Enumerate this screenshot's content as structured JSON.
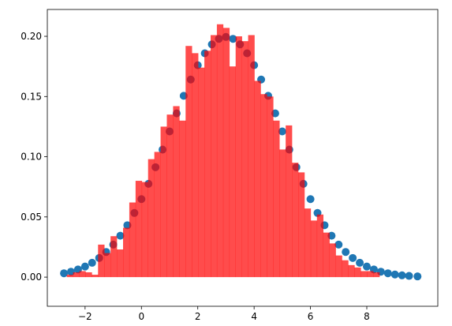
{
  "chart_data": {
    "type": "layered",
    "xlim": [
      -3.34,
      10.52
    ],
    "ylim": [
      -0.0242,
      0.2223
    ],
    "xticks": [
      {
        "value": -2,
        "label": "−2"
      },
      0,
      2,
      4,
      6,
      8
    ],
    "yticks": [
      {
        "value": 0,
        "label": "0.00"
      },
      {
        "value": 0.05,
        "label": "0.05"
      },
      {
        "value": 0.1,
        "label": "0.10"
      },
      {
        "value": 0.15,
        "label": "0.15"
      },
      {
        "value": 0.2,
        "label": "0.20"
      }
    ],
    "layers": [
      {
        "type": "scatter",
        "color": "#1f77b4",
        "x": [
          -2.75,
          -2.5,
          -2.25,
          -2.0,
          -1.75,
          -1.5,
          -1.25,
          -1.0,
          -0.75,
          -0.5,
          -0.25,
          0,
          0.25,
          0.5,
          0.75,
          1.0,
          1.25,
          1.5,
          1.75,
          2.0,
          2.25,
          2.5,
          2.75,
          3.0,
          3.25,
          3.5,
          3.75,
          4.0,
          4.25,
          4.5,
          4.75,
          5.0,
          5.25,
          5.5,
          5.75,
          6.0,
          6.25,
          6.5,
          6.75,
          7.0,
          7.25,
          7.5,
          7.75,
          8.0,
          8.25,
          8.5,
          8.75,
          9.0,
          9.25,
          9.5,
          9.8
        ],
        "y": [
          0.0032,
          0.0045,
          0.0064,
          0.0088,
          0.0119,
          0.0159,
          0.0209,
          0.027,
          0.0344,
          0.0431,
          0.0533,
          0.0648,
          0.0775,
          0.0913,
          0.1059,
          0.121,
          0.136,
          0.1506,
          0.1641,
          0.176,
          0.1859,
          0.1933,
          0.1979,
          0.1995,
          0.1979,
          0.1933,
          0.1859,
          0.176,
          0.1641,
          0.1506,
          0.136,
          0.121,
          0.1059,
          0.0913,
          0.0775,
          0.0648,
          0.0533,
          0.0431,
          0.0344,
          0.027,
          0.0209,
          0.0159,
          0.0119,
          0.0088,
          0.0064,
          0.0045,
          0.0032,
          0.0022,
          0.0015,
          0.001,
          0.0006
        ]
      },
      {
        "type": "histogram",
        "color": "#ff0000",
        "bins": [
          -2.65,
          -2.428,
          -2.206,
          -1.984,
          -1.762,
          -1.54,
          -1.318,
          -1.096,
          -0.874,
          -0.652,
          -0.43,
          -0.208,
          0.014,
          0.236,
          0.458,
          0.68,
          0.902,
          1.124,
          1.346,
          1.568,
          1.79,
          2.012,
          2.234,
          2.456,
          2.678,
          2.9,
          3.122,
          3.344,
          3.566,
          3.788,
          4.01,
          4.232,
          4.454,
          4.676,
          4.898,
          5.12,
          5.342,
          5.564,
          5.786,
          6.008,
          6.23,
          6.452,
          6.674,
          6.896,
          7.118,
          7.34,
          7.562,
          7.784,
          8.006,
          8.228,
          8.45
        ],
        "values": [
          0.002,
          0.004,
          0.005,
          0.004,
          0.002,
          0.027,
          0.02,
          0.034,
          0.023,
          0.041,
          0.062,
          0.08,
          0.079,
          0.098,
          0.104,
          0.125,
          0.135,
          0.142,
          0.13,
          0.192,
          0.186,
          0.174,
          0.188,
          0.201,
          0.21,
          0.207,
          0.175,
          0.2,
          0.196,
          0.201,
          0.163,
          0.152,
          0.15,
          0.13,
          0.106,
          0.126,
          0.095,
          0.087,
          0.057,
          0.047,
          0.052,
          0.037,
          0.028,
          0.018,
          0.014,
          0.01,
          0.008,
          0.005,
          0.005,
          0.004
        ]
      }
    ]
  }
}
